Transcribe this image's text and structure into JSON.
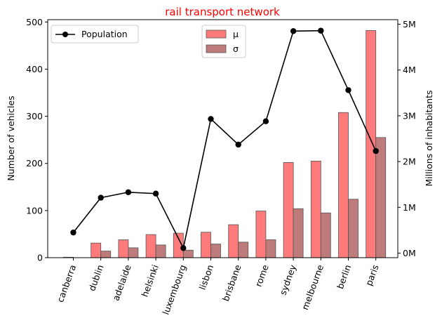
{
  "chart_data": {
    "type": "bar",
    "title": "rail transport network",
    "title_color": "#ff0000",
    "categories": [
      "canberra",
      "dublin",
      "adelaide",
      "helsinki",
      "luxembourg",
      "lisbon",
      "brisbane",
      "rome",
      "sydney",
      "melbourne",
      "berlin",
      "paris"
    ],
    "series": [
      {
        "name": "μ",
        "values": [
          1,
          31,
          38,
          49,
          52,
          54,
          70,
          99,
          202,
          205,
          308,
          482
        ],
        "color": "#ff7b7b",
        "axis": "left"
      },
      {
        "name": "σ",
        "values": [
          0,
          14,
          21,
          27,
          16,
          29,
          33,
          38,
          104,
          95,
          124,
          255
        ],
        "color": "#be7b7b",
        "axis": "left"
      },
      {
        "name": "Population",
        "values": [
          0.45,
          1.21,
          1.33,
          1.3,
          0.11,
          2.93,
          2.37,
          2.88,
          4.85,
          4.86,
          3.56,
          2.23
        ],
        "color": "#000000",
        "axis": "right",
        "type": "line"
      }
    ],
    "ylabel": "Number of vehicles",
    "ylim": [
      0,
      505
    ],
    "yticks": [
      0,
      100,
      200,
      300,
      400,
      500
    ],
    "y2label": "Millions of inhabitants",
    "y2lim": [
      -0.1,
      5.1
    ],
    "y2ticks": [
      0,
      1,
      2,
      3,
      4,
      5
    ],
    "y2ticklabels": [
      "0M",
      "1M",
      "2M",
      "3M",
      "4M",
      "5M"
    ],
    "legend_line_placement": "upper left",
    "legend_bars_placement": "upper center",
    "grid": false
  }
}
